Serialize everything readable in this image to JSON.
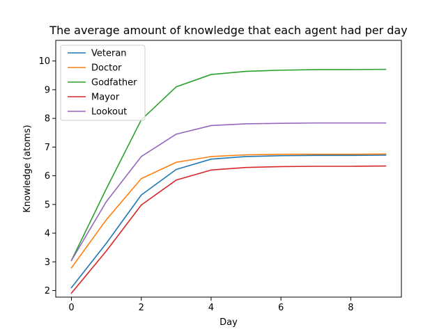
{
  "chart_data": {
    "type": "line",
    "title": "The average amount of knowledge that each agent had per day",
    "xlabel": "Day",
    "ylabel": "Knowledge (atoms)",
    "xlim": [
      -0.45,
      9.45
    ],
    "ylim": [
      1.77,
      10.72
    ],
    "xticks": [
      0,
      2,
      4,
      6,
      8
    ],
    "yticks": [
      2,
      3,
      4,
      5,
      6,
      7,
      8,
      9,
      10
    ],
    "grid": false,
    "legend_position": "top-left",
    "x": [
      0,
      1,
      2,
      3,
      4,
      5,
      6,
      7,
      8,
      9
    ],
    "series": [
      {
        "name": "Veteran",
        "color": "#1f77b4",
        "values": [
          2.1,
          3.65,
          5.33,
          6.22,
          6.58,
          6.67,
          6.7,
          6.71,
          6.71,
          6.72
        ]
      },
      {
        "name": "Doctor",
        "color": "#ff7f0e",
        "values": [
          2.79,
          4.47,
          5.9,
          6.47,
          6.67,
          6.73,
          6.75,
          6.75,
          6.75,
          6.76
        ]
      },
      {
        "name": "Godfather",
        "color": "#2ca02c",
        "values": [
          3.05,
          5.55,
          7.95,
          9.1,
          9.53,
          9.64,
          9.68,
          9.7,
          9.7,
          9.71
        ]
      },
      {
        "name": "Mayor",
        "color": "#d62728",
        "values": [
          1.91,
          3.38,
          4.98,
          5.85,
          6.2,
          6.29,
          6.32,
          6.33,
          6.33,
          6.34
        ]
      },
      {
        "name": "Lookout",
        "color": "#9467bd",
        "values": [
          3.05,
          5.1,
          6.67,
          7.45,
          7.75,
          7.81,
          7.83,
          7.84,
          7.84,
          7.84
        ]
      }
    ]
  }
}
